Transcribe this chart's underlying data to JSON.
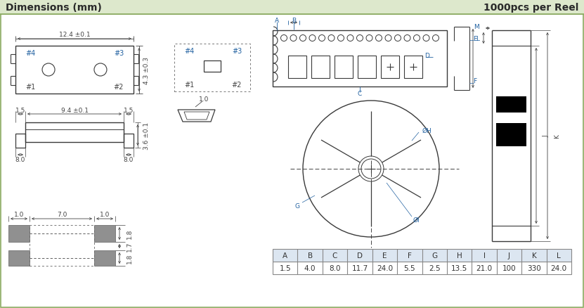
{
  "title_left": "Dimensions (mm)",
  "title_right": "1000pcs per Reel",
  "header_bg": "#dde8cc",
  "bg_color": "#ffffff",
  "line_color": "#3a3a3a",
  "blue_color": "#2060a0",
  "dim_color": "#444444",
  "table_headers": [
    "A",
    "B",
    "C",
    "D",
    "E",
    "F",
    "G",
    "H",
    "I",
    "J",
    "K",
    "L"
  ],
  "table_values": [
    "1.5",
    "4.0",
    "8.0",
    "11.7",
    "24.0",
    "5.5",
    "2.5",
    "13.5",
    "21.0",
    "100",
    "330",
    "24.0"
  ]
}
